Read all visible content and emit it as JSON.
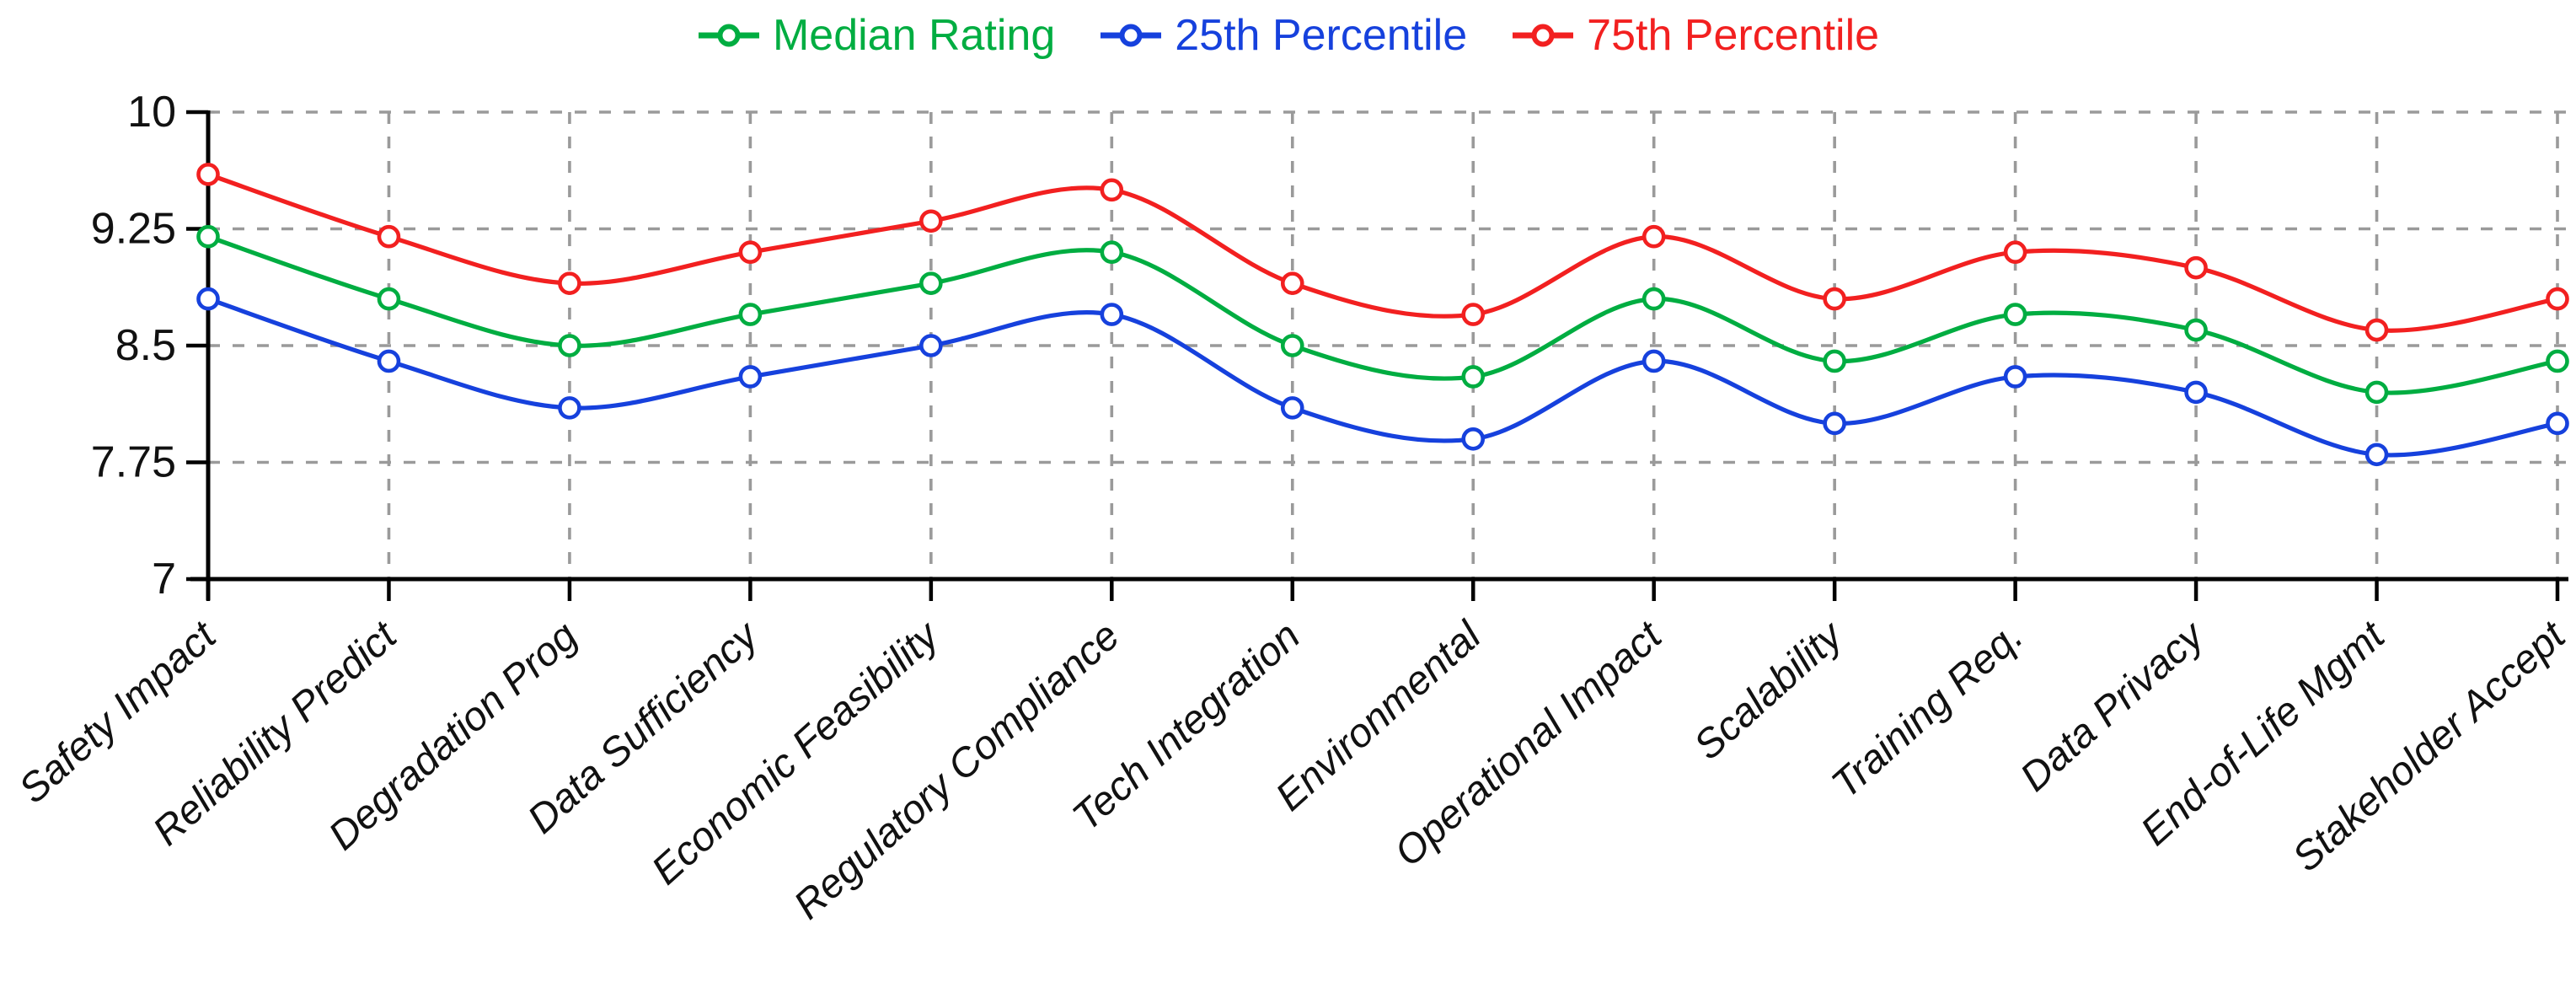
{
  "chart_data": {
    "type": "line",
    "title": "",
    "xlabel": "",
    "ylabel": "",
    "categories": [
      "Safety Impact",
      "Reliability Predict",
      "Degradation Prog",
      "Data Sufficiency",
      "Economic Feasibility",
      "Regulatory Compliance",
      "Tech Integration",
      "Environmental",
      "Operational Impact",
      "Scalability",
      "Training Req.",
      "Data Privacy",
      "End-of-Life Mgmt",
      "Stakeholder Accept"
    ],
    "series": [
      {
        "name": "Median Rating",
        "color": "#00ad41",
        "values": [
          9.2,
          8.8,
          8.5,
          8.7,
          8.9,
          9.1,
          8.5,
          8.3,
          8.8,
          8.4,
          8.7,
          8.6,
          8.2,
          8.4
        ]
      },
      {
        "name": "25th Percentile",
        "color": "#1641dd",
        "values": [
          8.8,
          8.4,
          8.1,
          8.3,
          8.5,
          8.7,
          8.1,
          7.9,
          8.4,
          8.0,
          8.3,
          8.2,
          7.8,
          8.0
        ]
      },
      {
        "name": "75th Percentile",
        "color": "#f22020",
        "values": [
          9.6,
          9.2,
          8.9,
          9.1,
          9.3,
          9.5,
          8.9,
          8.7,
          9.2,
          8.8,
          9.1,
          9.0,
          8.6,
          8.8
        ]
      }
    ],
    "ylim": [
      7,
      10
    ],
    "yticks": [
      7,
      7.75,
      8.5,
      9.25,
      10
    ],
    "ytick_labels": [
      "7",
      "7.75",
      "8.5",
      "9.25",
      "10"
    ],
    "grid": "dashed-both-directions",
    "grid_color": "#9a9a9a",
    "axis_color": "#000000",
    "tick_label_color": "#111111",
    "marker": "open-circle-white-fill",
    "line_style": "smooth",
    "legend_position": "top-center",
    "x_label_rotation_deg": 42,
    "x_label_style": "italic"
  }
}
